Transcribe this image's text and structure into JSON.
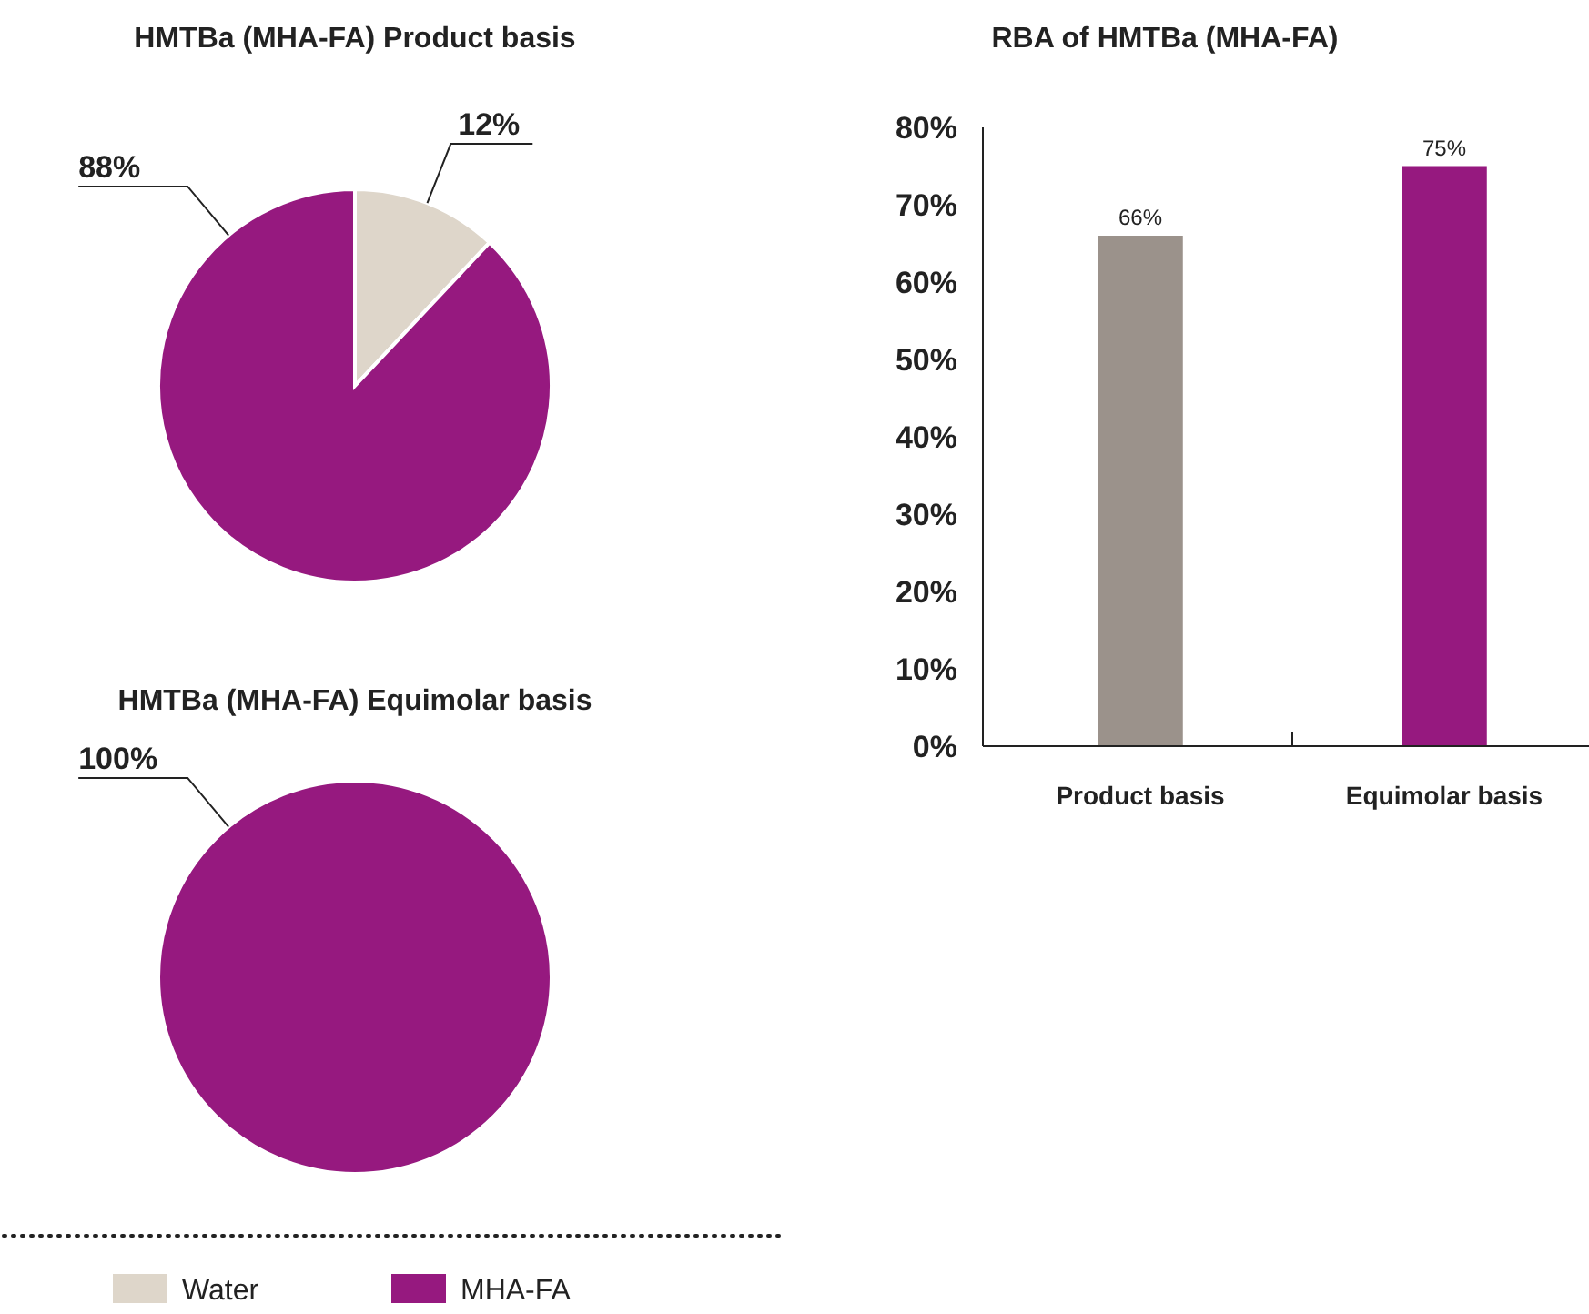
{
  "chart_data": [
    {
      "type": "pie",
      "title": "HMTBa (MHA-FA) Product basis",
      "categories": [
        "Water",
        "MHA-FA"
      ],
      "values": [
        12,
        88
      ],
      "colors": [
        "#ded6ca",
        "#96197f"
      ],
      "value_labels": [
        "12%",
        "88%"
      ],
      "legend": "bottom"
    },
    {
      "type": "pie",
      "title": "HMTBa (MHA-FA) Equimolar basis",
      "categories": [
        null
      ],
      "values": [
        100
      ],
      "colors": [
        "#96197f"
      ],
      "value_labels": [
        "100%"
      ]
    },
    {
      "type": "bar",
      "title": "RBA of HMTBa (MHA-FA)",
      "categories": [
        "Product basis",
        "Equimolar basis"
      ],
      "values": [
        66,
        75
      ],
      "colors": [
        "#9b928b",
        "#96197f"
      ],
      "value_labels": [
        "66%",
        "75%"
      ],
      "ylim": [
        0,
        80
      ],
      "yticks": [
        {
          "value": 0,
          "label": "0%"
        },
        {
          "value": 10,
          "label": "10%"
        },
        {
          "value": 20,
          "label": "20%"
        },
        {
          "value": 30,
          "label": "30%"
        },
        {
          "value": 40,
          "label": "40%"
        },
        {
          "value": 50,
          "label": "50%"
        },
        {
          "value": 60,
          "label": "60%"
        },
        {
          "value": 70,
          "label": "70%"
        },
        {
          "value": 80,
          "label": "80%"
        }
      ]
    }
  ]
}
